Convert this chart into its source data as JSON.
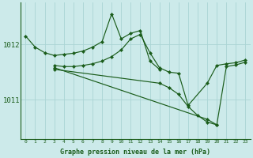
{
  "background_color": "#cceaea",
  "grid_color_v": "#aad4d4",
  "grid_color_h": "#aad4d4",
  "line_color": "#1a5c1a",
  "title": "Graphe pression niveau de la mer (hPa)",
  "xlim": [
    -0.5,
    23.5
  ],
  "ylim": [
    1010.3,
    1012.75
  ],
  "yticks": [
    1011,
    1012
  ],
  "xticks": [
    0,
    1,
    2,
    3,
    4,
    5,
    6,
    7,
    8,
    9,
    10,
    11,
    12,
    13,
    14,
    15,
    16,
    17,
    18,
    19,
    20,
    21,
    22,
    23
  ],
  "series": [
    {
      "x": [
        0,
        1,
        2,
        3,
        4,
        5,
        6,
        7,
        8,
        9,
        10,
        11,
        12,
        13,
        14
      ],
      "y": [
        1012.15,
        1011.95,
        1011.85,
        1011.8,
        1011.82,
        1011.84,
        1011.88,
        1011.95,
        1012.05,
        1012.55,
        1012.1,
        1012.2,
        1012.25,
        1011.7,
        1011.55
      ]
    },
    {
      "x": [
        3,
        4,
        5,
        6,
        7,
        8,
        9,
        10,
        11,
        12,
        13,
        14,
        15,
        16,
        17,
        19,
        20,
        21,
        22,
        23
      ],
      "y": [
        1011.62,
        1011.6,
        1011.6,
        1011.62,
        1011.65,
        1011.7,
        1011.78,
        1011.9,
        1012.1,
        1012.18,
        1011.85,
        1011.58,
        1011.5,
        1011.48,
        1010.9,
        1011.3,
        1011.62,
        1011.65,
        1011.67,
        1011.72
      ]
    },
    {
      "x": [
        3,
        19,
        20,
        21,
        22,
        23
      ],
      "y": [
        1011.58,
        1010.65,
        1010.55,
        1011.6,
        1011.63,
        1011.68
      ]
    },
    {
      "x": [
        3,
        14,
        15,
        16,
        17,
        18,
        19,
        20
      ],
      "y": [
        1011.55,
        1011.3,
        1011.22,
        1011.1,
        1010.88,
        1010.72,
        1010.6,
        1010.55
      ]
    }
  ]
}
